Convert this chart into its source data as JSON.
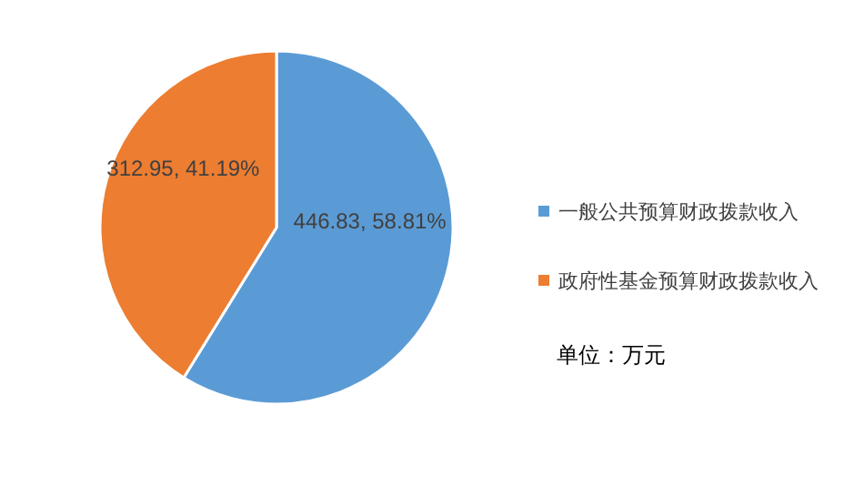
{
  "chart_data": {
    "type": "pie",
    "categories": [
      "一般公共预算财政拨款收入",
      "政府性基金预算财政拨款收入"
    ],
    "values": [
      446.83,
      312.95
    ],
    "colors": [
      "#5b9bd5",
      "#ed7d31"
    ],
    "value_labels": [
      "446.83, 58.81%",
      "312.95, 41.19%"
    ],
    "legend": "right",
    "annotations": [
      "单位：万元"
    ]
  }
}
